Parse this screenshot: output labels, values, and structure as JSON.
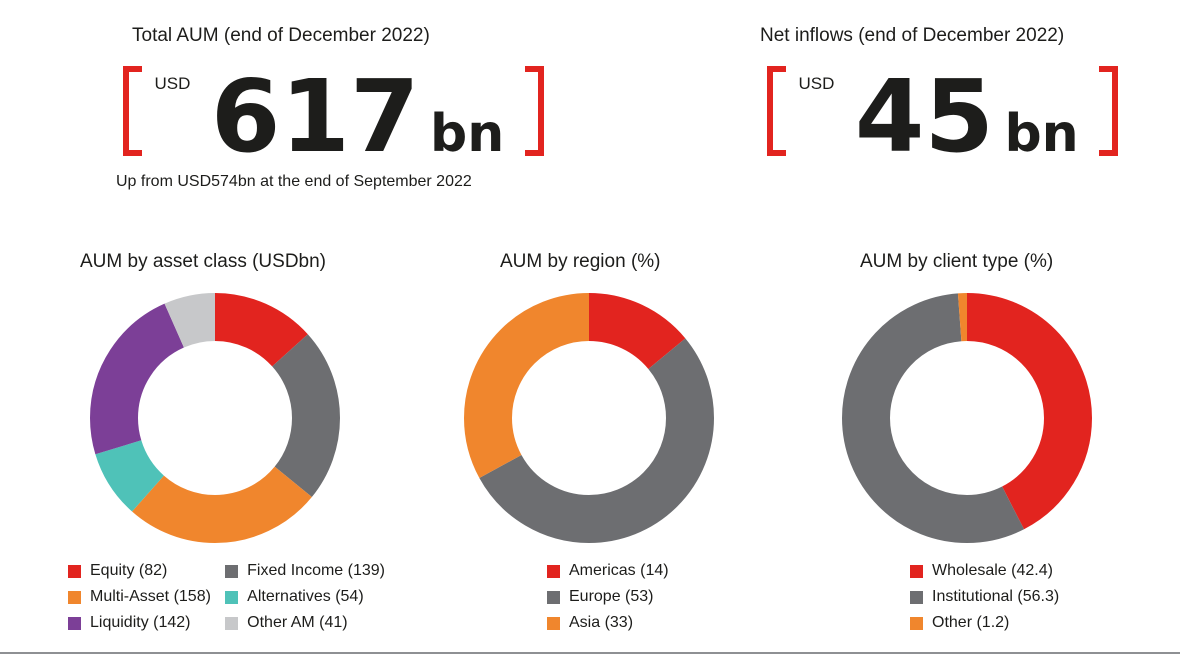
{
  "colors": {
    "accent_red": "#e2241f",
    "dark_gray": "#6d6e71",
    "orange": "#f0862d",
    "teal": "#4fc2b8",
    "purple": "#7c3f97",
    "light_gray": "#c7c8ca",
    "text": "#1d1d1b",
    "bottom_rule": "#8e9093"
  },
  "stats": [
    {
      "title": "Total AUM (end of December 2022)",
      "currency": "USD",
      "value": "617",
      "unit": "bn",
      "subtitle": "Up from USD574bn at the end of September 2022"
    },
    {
      "title": "Net inflows (end of December 2022)",
      "currency": "USD",
      "value": "45",
      "unit": "bn",
      "subtitle": ""
    }
  ],
  "chart_data": [
    {
      "type": "donut",
      "title": "AUM by asset class (USDbn)",
      "value_unit": "USDbn",
      "start_angle_deg": 0,
      "direction": "clockwise",
      "segments": [
        {
          "label": "Equity",
          "value": 82,
          "color": "#e2241f"
        },
        {
          "label": "Fixed Income",
          "value": 139,
          "color": "#6d6e71"
        },
        {
          "label": "Multi-Asset",
          "value": 158,
          "color": "#f0862d"
        },
        {
          "label": "Alternatives",
          "value": 54,
          "color": "#4fc2b8"
        },
        {
          "label": "Liquidity",
          "value": 142,
          "color": "#7c3f97"
        },
        {
          "label": "Other AM",
          "value": 41,
          "color": "#c7c8ca"
        }
      ],
      "legend_columns": [
        [
          0,
          2,
          4
        ],
        [
          1,
          3,
          5
        ]
      ]
    },
    {
      "type": "donut",
      "title": "AUM by region (%)",
      "value_unit": "%",
      "start_angle_deg": 0,
      "direction": "clockwise",
      "segments": [
        {
          "label": "Americas",
          "value": 14,
          "color": "#e2241f"
        },
        {
          "label": "Europe",
          "value": 53,
          "color": "#6d6e71"
        },
        {
          "label": "Asia",
          "value": 33,
          "color": "#f0862d"
        }
      ],
      "legend_columns": [
        [
          0,
          1,
          2
        ]
      ]
    },
    {
      "type": "donut",
      "title": "AUM by client type (%)",
      "value_unit": "%",
      "start_angle_deg": 0,
      "direction": "clockwise",
      "segments": [
        {
          "label": "Wholesale",
          "value": 42.4,
          "color": "#e2241f"
        },
        {
          "label": "Institutional",
          "value": 56.3,
          "color": "#6d6e71"
        },
        {
          "label": "Other",
          "value": 1.2,
          "color": "#f0862d"
        }
      ],
      "legend_columns": [
        [
          0,
          1,
          2
        ]
      ]
    }
  ]
}
